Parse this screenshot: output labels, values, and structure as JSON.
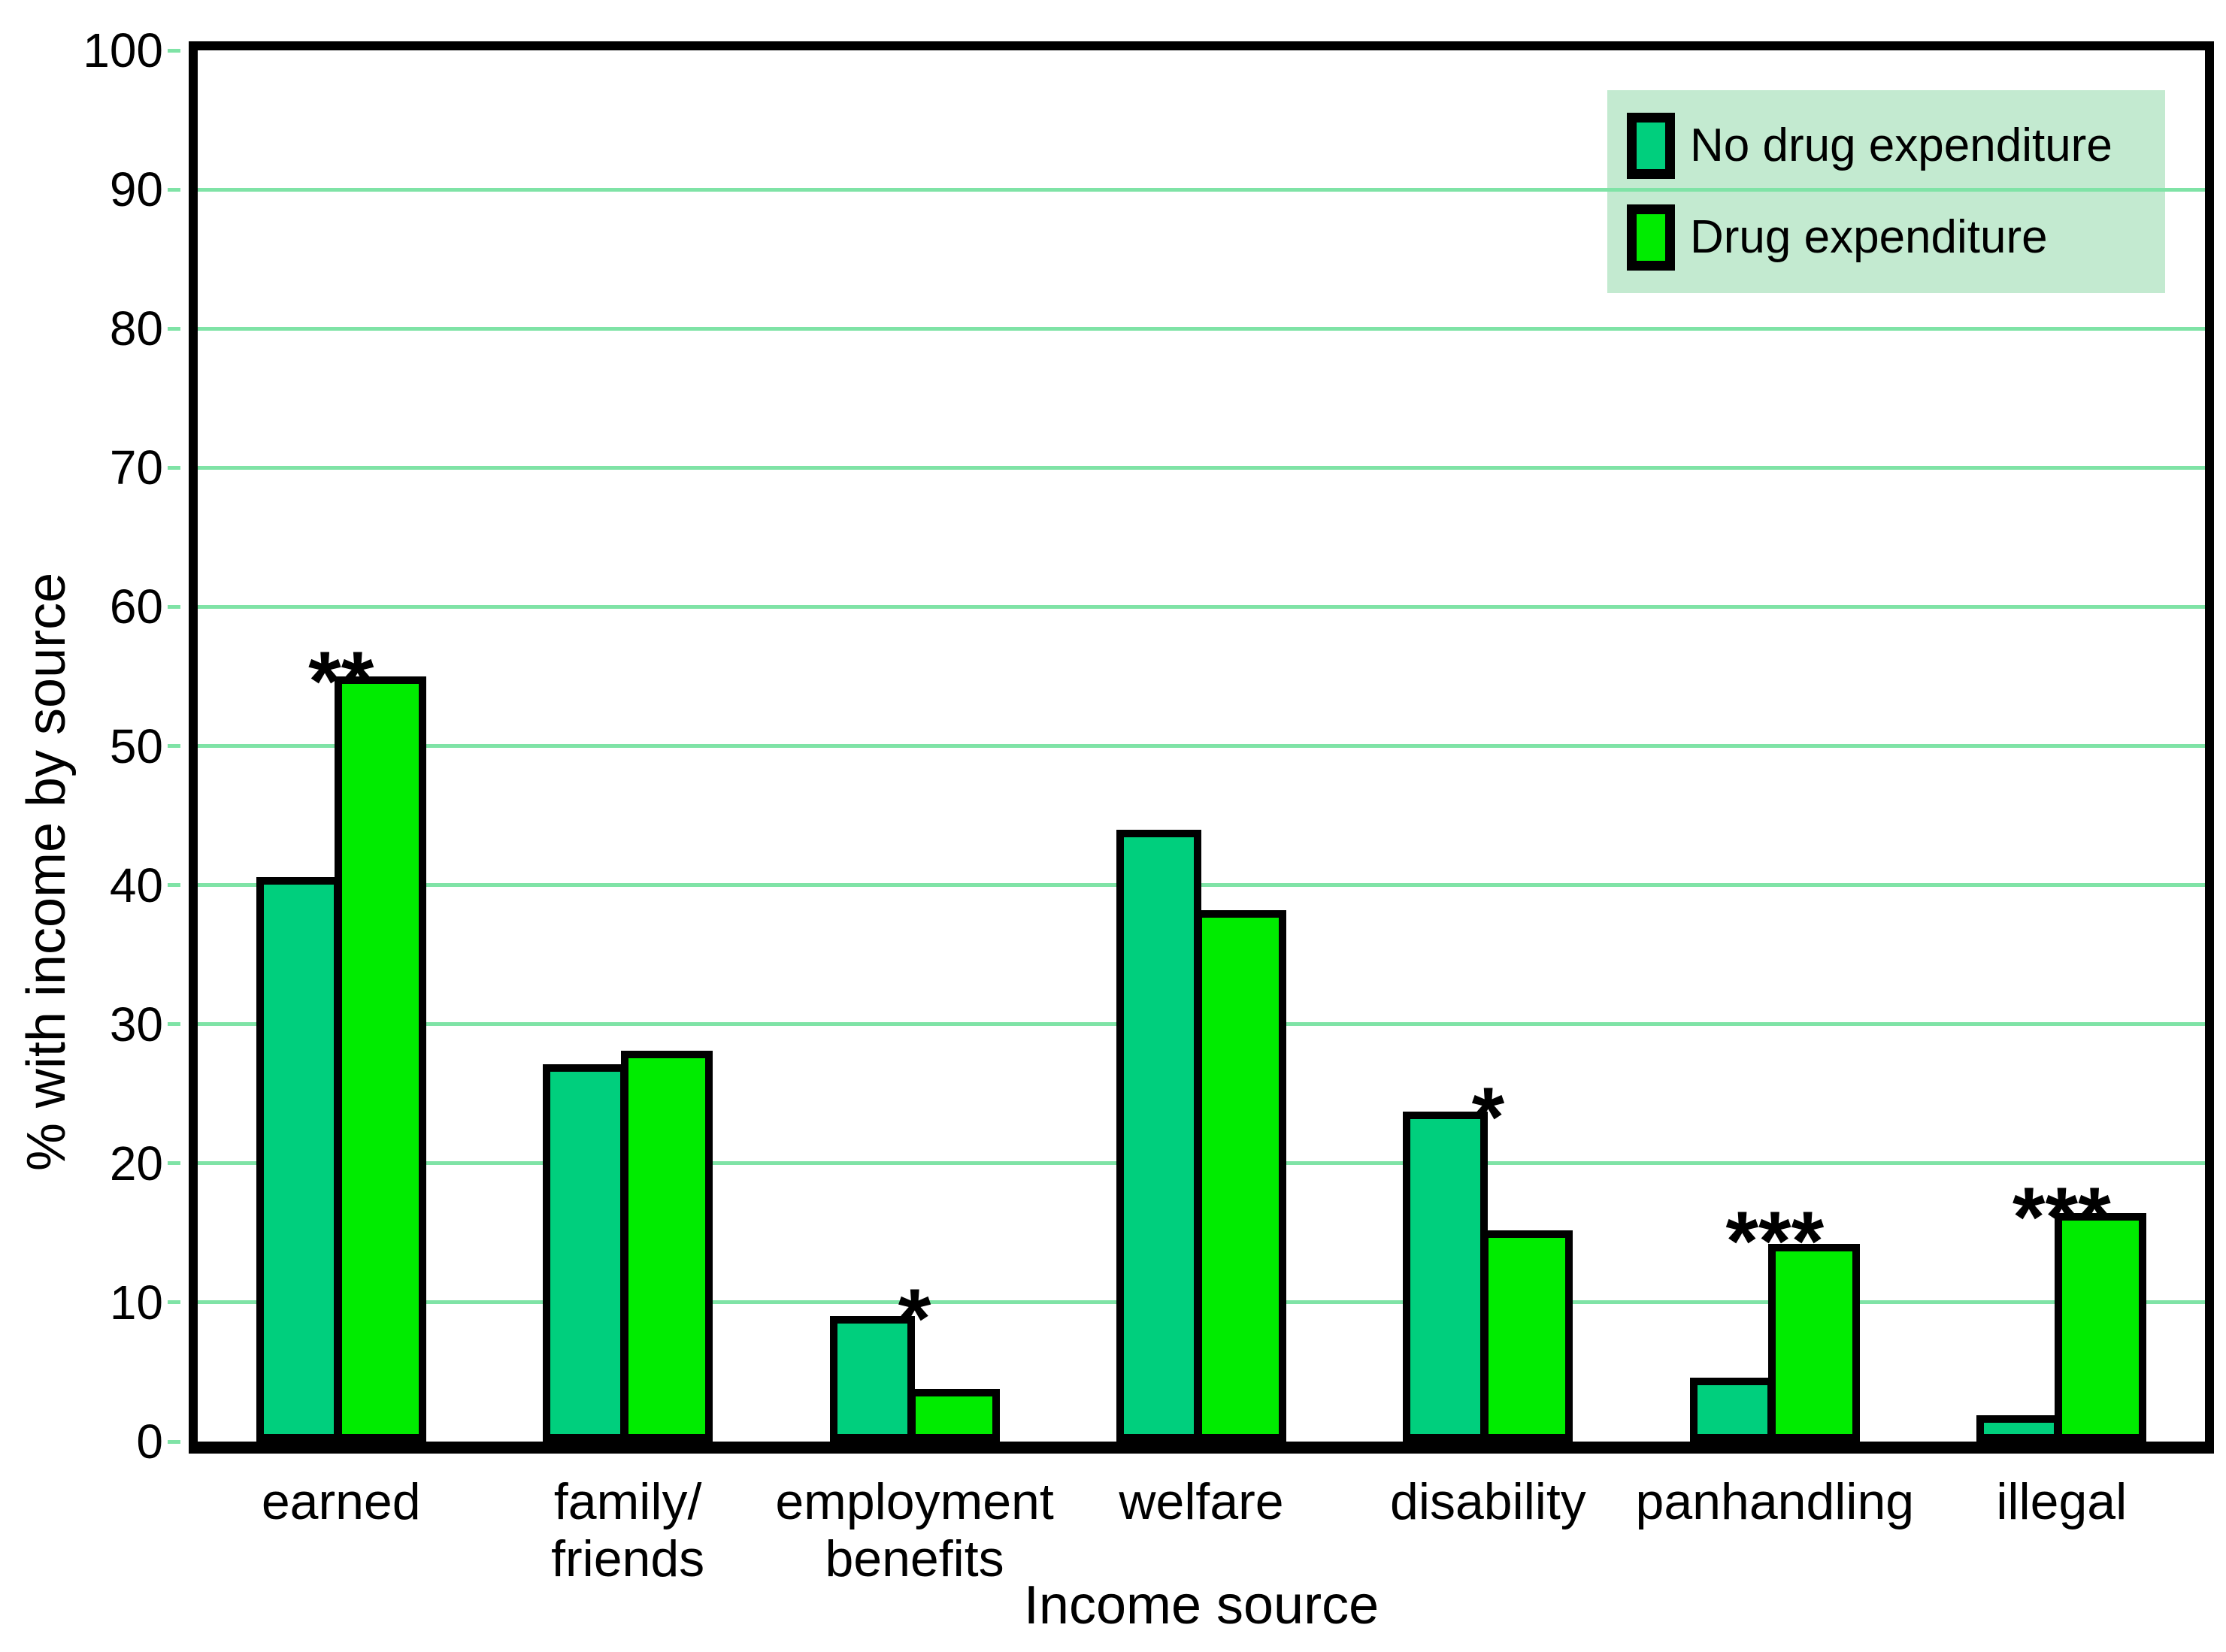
{
  "chart_data": {
    "type": "bar",
    "title": "",
    "xlabel": "Income source",
    "ylabel": "% with income by source",
    "categories": [
      "earned",
      "family/\nfriends",
      "employment\nbenefits",
      "welfare",
      "disability",
      "panhandling",
      "illegal"
    ],
    "series": [
      {
        "name": "No drug expenditure",
        "color": "#00cf7d",
        "values": [
          40.6,
          27.1,
          9.0,
          44.0,
          23.7,
          4.6,
          1.9
        ]
      },
      {
        "name": "Drug expenditure",
        "color": "#00ec00",
        "values": [
          55.0,
          28.1,
          3.8,
          38.2,
          15.2,
          14.2,
          16.4
        ]
      }
    ],
    "significance_markers": [
      {
        "category": "earned",
        "marker": "**",
        "y": 58.0
      },
      {
        "category": "employment\nbenefits",
        "marker": "*",
        "y": 12.2
      },
      {
        "category": "disability",
        "marker": "*",
        "y": 26.7
      },
      {
        "category": "panhandling",
        "marker": "***",
        "y": 17.8
      },
      {
        "category": "illegal",
        "marker": "***",
        "y": 19.5
      }
    ],
    "ylim": [
      0,
      100
    ],
    "yticks": [
      0,
      10,
      20,
      30,
      40,
      50,
      60,
      70,
      80,
      90,
      100
    ],
    "grid": "horizontal",
    "legend_position": "top-right-inside",
    "colors": {
      "gridline": "#7fe3a6",
      "legend_bg": "#c3ead0",
      "frame": "#000000",
      "background": "#ffffff",
      "text": "#000000"
    }
  }
}
